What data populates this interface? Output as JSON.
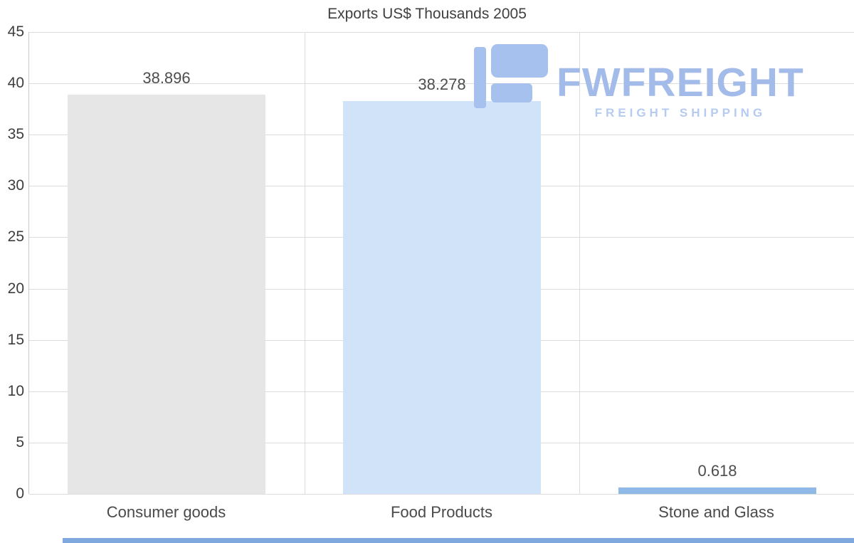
{
  "chart_data": {
    "type": "bar",
    "title": "Exports US$ Thousands 2005",
    "categories": [
      "Consumer goods",
      "Food Products",
      "Stone and Glass"
    ],
    "values": [
      38.896,
      38.278,
      0.618
    ],
    "value_labels": [
      "38.896",
      "38.278",
      "0.618"
    ],
    "bar_colors": [
      "#e6e6e6",
      "#d0e3f9",
      "#8fb9e6"
    ],
    "xlabel": "",
    "ylabel": "",
    "ylim": [
      0,
      45
    ],
    "yticks": [
      0,
      5,
      10,
      15,
      20,
      25,
      30,
      35,
      40,
      45
    ],
    "grid": true,
    "legend_position": "none"
  },
  "watermark": {
    "brand": "FWFREIGHT",
    "tagline": "FREIGHT SHIPPING",
    "color": "#a2bbe9"
  },
  "colors": {
    "title_text": "#3f3f3f",
    "axis_text": "#3d3d3d",
    "gridline": "#dcdcdc",
    "bottom_strip": "#7fa9de"
  }
}
